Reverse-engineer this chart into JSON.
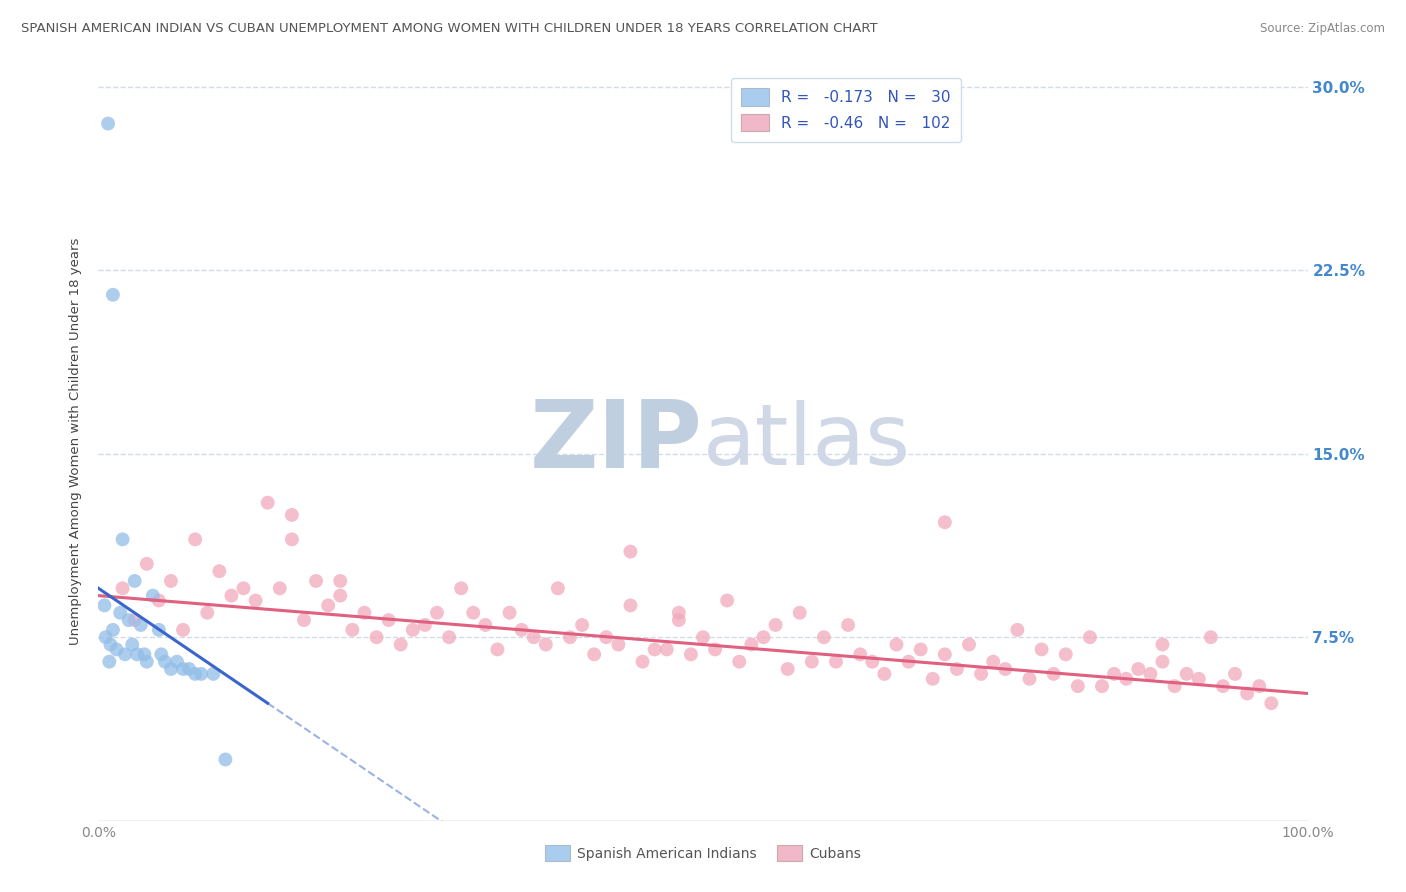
{
  "title": "SPANISH AMERICAN INDIAN VS CUBAN UNEMPLOYMENT AMONG WOMEN WITH CHILDREN UNDER 18 YEARS CORRELATION CHART",
  "source": "Source: ZipAtlas.com",
  "ylabel": "Unemployment Among Women with Children Under 18 years",
  "xlim": [
    0,
    100
  ],
  "ylim": [
    0,
    31
  ],
  "yticks": [
    7.5,
    15.0,
    22.5,
    30.0
  ],
  "xticks": [
    0,
    100
  ],
  "xtick_labels": [
    "0.0%",
    "100.0%"
  ],
  "ytick_labels_right": [
    "7.5%",
    "15.0%",
    "22.5%",
    "30.0%"
  ],
  "r_sai": -0.173,
  "n_sai": 30,
  "r_cuban": -0.46,
  "n_cuban": 102,
  "color_sai": "#92bde8",
  "color_cuban": "#f2a8bc",
  "color_sai_line": "#3a66cc",
  "color_cuban_line": "#e06080",
  "color_sai_legend": "#aaccee",
  "color_cuban_legend": "#f0b8c8",
  "watermark_zip": "ZIP",
  "watermark_atlas": "atlas",
  "watermark_color_zip": "#c0cfe0",
  "watermark_color_atlas": "#d0d8e8",
  "background_color": "#ffffff",
  "grid_color": "#c8d4e0",
  "title_color": "#555555",
  "source_color": "#888888",
  "axis_label_color": "#444444",
  "tick_color_right": "#4488cc",
  "legend_text_color": "#1a1a2e",
  "legend_rn_color": "#3355bb",
  "sai_x": [
    0.8,
    1.2,
    2.0,
    3.0,
    4.5,
    0.5,
    1.8,
    2.5,
    3.5,
    5.0,
    0.6,
    1.0,
    1.5,
    2.2,
    3.2,
    4.0,
    5.5,
    6.0,
    7.0,
    8.0,
    1.2,
    0.9,
    2.8,
    3.8,
    5.2,
    6.5,
    7.5,
    8.5,
    9.5,
    10.5
  ],
  "sai_y": [
    28.5,
    21.5,
    11.5,
    9.8,
    9.2,
    8.8,
    8.5,
    8.2,
    8.0,
    7.8,
    7.5,
    7.2,
    7.0,
    6.8,
    6.8,
    6.5,
    6.5,
    6.2,
    6.2,
    6.0,
    7.8,
    6.5,
    7.2,
    6.8,
    6.8,
    6.5,
    6.2,
    6.0,
    6.0,
    2.5
  ],
  "cuban_x": [
    2.0,
    4.0,
    6.0,
    8.0,
    10.0,
    12.0,
    14.0,
    16.0,
    18.0,
    20.0,
    22.0,
    24.0,
    26.0,
    28.0,
    30.0,
    32.0,
    34.0,
    36.0,
    38.0,
    40.0,
    42.0,
    44.0,
    46.0,
    48.0,
    50.0,
    52.0,
    54.0,
    56.0,
    58.0,
    60.0,
    62.0,
    64.0,
    66.0,
    68.0,
    70.0,
    72.0,
    74.0,
    76.0,
    78.0,
    80.0,
    82.0,
    84.0,
    86.0,
    88.0,
    90.0,
    92.0,
    94.0,
    96.0,
    3.0,
    7.0,
    11.0,
    15.0,
    19.0,
    23.0,
    27.0,
    31.0,
    35.0,
    39.0,
    43.0,
    47.0,
    51.0,
    55.0,
    59.0,
    63.0,
    67.0,
    71.0,
    75.0,
    79.0,
    83.0,
    87.0,
    91.0,
    95.0,
    5.0,
    9.0,
    13.0,
    17.0,
    21.0,
    25.0,
    29.0,
    33.0,
    37.0,
    41.0,
    45.0,
    49.0,
    53.0,
    57.0,
    61.0,
    65.0,
    69.0,
    73.0,
    77.0,
    81.0,
    85.0,
    89.0,
    93.0,
    97.0,
    16.0,
    44.0,
    70.0,
    88.0,
    20.0,
    48.0
  ],
  "cuban_y": [
    9.5,
    10.5,
    9.8,
    11.5,
    10.2,
    9.5,
    13.0,
    12.5,
    9.8,
    9.2,
    8.5,
    8.2,
    7.8,
    8.5,
    9.5,
    8.0,
    8.5,
    7.5,
    9.5,
    8.0,
    7.5,
    8.8,
    7.0,
    8.5,
    7.5,
    9.0,
    7.2,
    8.0,
    8.5,
    7.5,
    8.0,
    6.5,
    7.2,
    7.0,
    6.8,
    7.2,
    6.5,
    7.8,
    7.0,
    6.8,
    7.5,
    6.0,
    6.2,
    6.5,
    6.0,
    7.5,
    6.0,
    5.5,
    8.2,
    7.8,
    9.2,
    9.5,
    8.8,
    7.5,
    8.0,
    8.5,
    7.8,
    7.5,
    7.2,
    7.0,
    7.0,
    7.5,
    6.5,
    6.8,
    6.5,
    6.2,
    6.2,
    6.0,
    5.5,
    6.0,
    5.8,
    5.2,
    9.0,
    8.5,
    9.0,
    8.2,
    7.8,
    7.2,
    7.5,
    7.0,
    7.2,
    6.8,
    6.5,
    6.8,
    6.5,
    6.2,
    6.5,
    6.0,
    5.8,
    6.0,
    5.8,
    5.5,
    5.8,
    5.5,
    5.5,
    4.8,
    11.5,
    11.0,
    12.2,
    7.2,
    9.8,
    8.2
  ],
  "sai_reg_x0": 0,
  "sai_reg_y0": 9.5,
  "sai_reg_x1": 14,
  "sai_reg_y1": 4.8,
  "cuban_reg_x0": 0,
  "cuban_reg_y0": 9.2,
  "cuban_reg_x1": 100,
  "cuban_reg_y1": 5.2
}
